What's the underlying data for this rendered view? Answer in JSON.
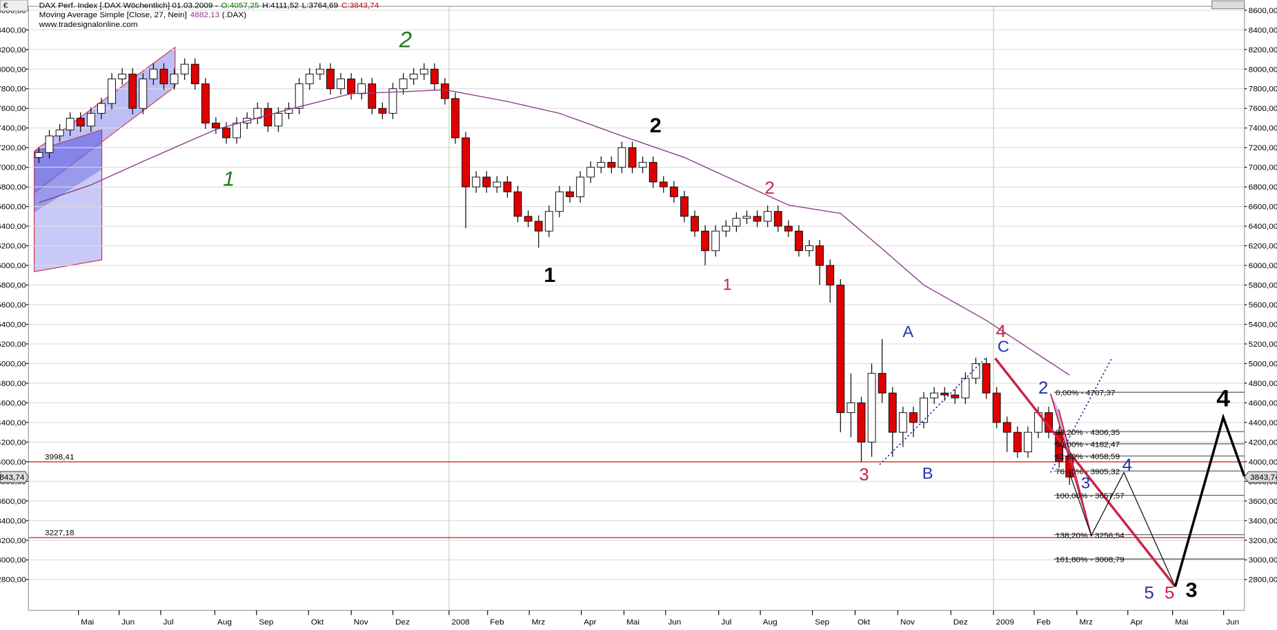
{
  "chart_data": {
    "type": "candlestick",
    "currency": "€",
    "title": "DAX Perf. Index [.DAX  Wöchentlich] 01.03.2009 -",
    "ohlc_labels": [
      {
        "text": "O:4057,25",
        "color": "#008000"
      },
      {
        "text": "H:4111,52",
        "color": "#000000"
      },
      {
        "text": "L:3764,69",
        "color": "#000000"
      },
      {
        "text": "C:3843,74",
        "color": "#cc0000"
      }
    ],
    "ma": {
      "name": "Moving Average Simple [Close, 27, Nein]",
      "value_label": "4882,13",
      "suffix": "(.DAX)",
      "color": "#8b3a8b",
      "x": [
        0,
        5,
        10,
        17,
        24,
        30,
        35,
        39,
        45,
        50,
        56,
        62,
        72,
        77,
        81,
        85,
        91,
        99
      ],
      "values": [
        6640,
        6820,
        7060,
        7385,
        7590,
        7750,
        7770,
        7790,
        7670,
        7550,
        7320,
        7100,
        6615,
        6530,
        6170,
        5800,
        5440,
        4882.13
      ]
    },
    "source": "www.tradesignalonline.com",
    "open": [
      7100,
      7150,
      7320,
      7380,
      7500,
      7420,
      7550,
      7650,
      7900,
      7950,
      7600,
      7900,
      8000,
      7850,
      7950,
      8050,
      7850,
      7450,
      7400,
      7300,
      7450,
      7500,
      7600,
      7420,
      7550,
      7600,
      7850,
      7950,
      8000,
      7800,
      7900,
      7750,
      7850,
      7600,
      7550,
      7800,
      7900,
      7950,
      8000,
      7850,
      7700,
      7300,
      6800,
      6900,
      6800,
      6850,
      6750,
      6500,
      6450,
      6350,
      6550,
      6750,
      6700,
      6900,
      7000,
      7050,
      7000,
      7200,
      7000,
      7050,
      6850,
      6800,
      6700,
      6500,
      6350,
      6150,
      6350,
      6400,
      6480,
      6500,
      6450,
      6550,
      6400,
      6350,
      6150,
      6200,
      6000,
      5800,
      4500,
      4600,
      4200,
      4900,
      4700,
      4300,
      4500,
      4400,
      4650,
      4700,
      4680,
      4650,
      4850,
      5000,
      4700,
      4400,
      4300,
      4100,
      4300,
      4500,
      4300,
      4057.25
    ],
    "high": [
      7210,
      7380,
      7440,
      7560,
      7560,
      7610,
      7710,
      7960,
      8010,
      8010,
      7960,
      8060,
      8060,
      8010,
      8110,
      8110,
      7910,
      7510,
      7460,
      7510,
      7560,
      7660,
      7660,
      7610,
      7660,
      7910,
      8010,
      8060,
      8060,
      7960,
      7960,
      7910,
      7910,
      7660,
      7860,
      7960,
      8010,
      8060,
      8060,
      7910,
      7760,
      7360,
      6960,
      6960,
      6910,
      6910,
      6810,
      6560,
      6510,
      6610,
      6810,
      6810,
      6960,
      7060,
      7110,
      7110,
      7260,
      7260,
      7110,
      7110,
      6910,
      6860,
      6760,
      6560,
      6410,
      6410,
      6460,
      6540,
      6560,
      6560,
      6610,
      6610,
      6460,
      6410,
      6260,
      6260,
      6060,
      5860,
      4900,
      4660,
      5000,
      5250,
      4760,
      4560,
      4560,
      4710,
      4760,
      4760,
      4740,
      4910,
      5060,
      5060,
      4760,
      4460,
      4360,
      4360,
      4560,
      4560,
      4360,
      4111.52
    ],
    "low": [
      7040,
      7090,
      7260,
      7320,
      7360,
      7360,
      7490,
      7590,
      7840,
      7540,
      7540,
      7840,
      7790,
      7790,
      7890,
      7790,
      7390,
      7340,
      7240,
      7240,
      7390,
      7440,
      7360,
      7360,
      7490,
      7540,
      7790,
      7890,
      7740,
      7740,
      7690,
      7690,
      7540,
      7490,
      7490,
      7740,
      7840,
      7890,
      7790,
      7640,
      7240,
      6380,
      6740,
      6740,
      6740,
      6690,
      6440,
      6390,
      6180,
      6290,
      6490,
      6640,
      6640,
      6840,
      6940,
      6940,
      6940,
      6940,
      6940,
      6790,
      6740,
      6640,
      6440,
      6290,
      6000,
      6090,
      6290,
      6340,
      6420,
      6390,
      6390,
      6340,
      6290,
      6090,
      6090,
      5800,
      5620,
      4300,
      4250,
      4000,
      4050,
      4600,
      4050,
      4150,
      4250,
      4340,
      4590,
      4620,
      4590,
      4590,
      4790,
      4640,
      4340,
      4100,
      4040,
      4040,
      4240,
      4240,
      3940,
      3764.69
    ],
    "close": [
      7150,
      7320,
      7380,
      7500,
      7420,
      7550,
      7650,
      7900,
      7950,
      7600,
      7900,
      8000,
      7850,
      7950,
      8050,
      7850,
      7450,
      7400,
      7300,
      7450,
      7500,
      7600,
      7420,
      7550,
      7600,
      7850,
      7950,
      8000,
      7800,
      7900,
      7750,
      7850,
      7600,
      7550,
      7800,
      7900,
      7950,
      8000,
      7850,
      7700,
      7300,
      6800,
      6900,
      6800,
      6850,
      6750,
      6500,
      6450,
      6350,
      6550,
      6750,
      6700,
      6900,
      7000,
      7050,
      7000,
      7200,
      7000,
      7050,
      6850,
      6800,
      6700,
      6500,
      6350,
      6150,
      6350,
      6400,
      6480,
      6500,
      6450,
      6550,
      6400,
      6350,
      6150,
      6200,
      6000,
      5800,
      4500,
      4600,
      4200,
      4900,
      4700,
      4300,
      4500,
      4400,
      4650,
      4700,
      4680,
      4650,
      4850,
      5000,
      4700,
      4400,
      4300,
      4100,
      4300,
      4500,
      4300,
      4000,
      3843.74
    ],
    "up_color": "#ffffff",
    "down_color": "#e00000",
    "last_label": "3843,74",
    "ylim": [
      2486,
      8640
    ],
    "yticks": [
      {
        "value": 2800,
        "label": "2800,00"
      },
      {
        "value": 3000,
        "label": "3000,00"
      },
      {
        "value": 3200,
        "label": "3200,00"
      },
      {
        "value": 3400,
        "label": "3400,00"
      },
      {
        "value": 3600,
        "label": "3600,00"
      },
      {
        "value": 3800,
        "label": "3800,00"
      },
      {
        "value": 4000,
        "label": "4000,00"
      },
      {
        "value": 4200,
        "label": "4200,00"
      },
      {
        "value": 4400,
        "label": "4400,00"
      },
      {
        "value": 4600,
        "label": "4600,00"
      },
      {
        "value": 4800,
        "label": "4800,00"
      },
      {
        "value": 5000,
        "label": "5000,00"
      },
      {
        "value": 5200,
        "label": "5200,00"
      },
      {
        "value": 5400,
        "label": "5400,00"
      },
      {
        "value": 5600,
        "label": "5600,00"
      },
      {
        "value": 5800,
        "label": "5800,00"
      },
      {
        "value": 6000,
        "label": "6000,00"
      },
      {
        "value": 6200,
        "label": "6200,00"
      },
      {
        "value": 6400,
        "label": "6400,00"
      },
      {
        "value": 6600,
        "label": "6600,00"
      },
      {
        "value": 6800,
        "label": "6800,00"
      },
      {
        "value": 7000,
        "label": "7000,00"
      },
      {
        "value": 7200,
        "label": "7200,00"
      },
      {
        "value": 7400,
        "label": "7400,00"
      },
      {
        "value": 7600,
        "label": "7600,00"
      },
      {
        "value": 7800,
        "label": "7800,00"
      },
      {
        "value": 8000,
        "label": "8000,00"
      },
      {
        "value": 8200,
        "label": "8200,00"
      },
      {
        "value": 8400,
        "label": "8400,00"
      },
      {
        "value": 8600,
        "label": "8600,00"
      }
    ],
    "xlim": [
      -1,
      115.8
    ],
    "xticks": [
      {
        "value": 3.8,
        "label": "Mai"
      },
      {
        "value": 7.7,
        "label": "Jun"
      },
      {
        "value": 11.7,
        "label": "Jul"
      },
      {
        "value": 16.9,
        "label": "Aug"
      },
      {
        "value": 20.9,
        "label": "Sep"
      },
      {
        "value": 25.9,
        "label": "Okt"
      },
      {
        "value": 30,
        "label": "Nov"
      },
      {
        "value": 34,
        "label": "Dez"
      },
      {
        "value": 39.4,
        "label": "2008"
      },
      {
        "value": 43.1,
        "label": "Feb"
      },
      {
        "value": 47.1,
        "label": "Mrz"
      },
      {
        "value": 52.1,
        "label": "Apr"
      },
      {
        "value": 56.2,
        "label": "Mai"
      },
      {
        "value": 60.2,
        "label": "Jun"
      },
      {
        "value": 65.3,
        "label": "Jul"
      },
      {
        "value": 69.3,
        "label": "Aug"
      },
      {
        "value": 74.3,
        "label": "Sep"
      },
      {
        "value": 78.4,
        "label": "Okt"
      },
      {
        "value": 82.5,
        "label": "Nov"
      },
      {
        "value": 87.6,
        "label": "Dez"
      },
      {
        "value": 91.7,
        "label": "2009"
      },
      {
        "value": 95.6,
        "label": "Feb"
      },
      {
        "value": 99.7,
        "label": "Mrz"
      },
      {
        "value": 104.6,
        "label": "Apr"
      },
      {
        "value": 108.9,
        "label": "Mai"
      },
      {
        "value": 113.8,
        "label": "Jun"
      }
    ],
    "year_lines": [
      39.4,
      91.7
    ],
    "grid": true,
    "levels": [
      {
        "value": 3998.41,
        "label": "3998,41"
      },
      {
        "value": 3227.18,
        "label": "3227,18"
      }
    ],
    "level_color": "#cc0000",
    "fib_start": 97.5,
    "fib": [
      {
        "value": 4707.37,
        "label": "0,00% - 4707,37"
      },
      {
        "value": 4306.35,
        "label": "38,20% - 4306,35"
      },
      {
        "value": 4182.47,
        "label": "50,00% - 4182,47"
      },
      {
        "value": 4058.59,
        "label": "61,80% - 4058,59"
      },
      {
        "value": 3905.32,
        "label": "76,40% - 3905,32"
      },
      {
        "value": 3657.57,
        "label": "100,00% - 3657,57"
      },
      {
        "value": 3256.54,
        "label": "138,20% - 3256,54"
      },
      {
        "value": 3008.79,
        "label": "161,80% - 3008,79"
      }
    ],
    "annotations": [
      {
        "text": "1",
        "color": "#1a7a1a"
      },
      {
        "text": "2",
        "color": "#1a7a1a"
      },
      {
        "text": "1",
        "color": "#000000"
      },
      {
        "text": "2",
        "color": "#000000"
      },
      {
        "text": "2",
        "color": "#cc2244"
      },
      {
        "text": "1",
        "color": "#cc2244"
      },
      {
        "text": "3",
        "color": "#cc2244"
      },
      {
        "text": "A",
        "color": "#2233aa"
      },
      {
        "text": "B",
        "color": "#2233aa"
      },
      {
        "text": "4",
        "color": "#cc2244"
      },
      {
        "text": "C",
        "color": "#2233aa"
      },
      {
        "text": "2",
        "color": "#2233aa"
      },
      {
        "text": "3",
        "color": "#2233aa"
      },
      {
        "text": "4",
        "color": "#2233aa"
      },
      {
        "text": "5",
        "color": "#2233aa"
      },
      {
        "text": "5",
        "color": "#cc2244"
      },
      {
        "text": "3",
        "color": "#000000"
      },
      {
        "text": "4",
        "color": "#000000"
      }
    ]
  }
}
